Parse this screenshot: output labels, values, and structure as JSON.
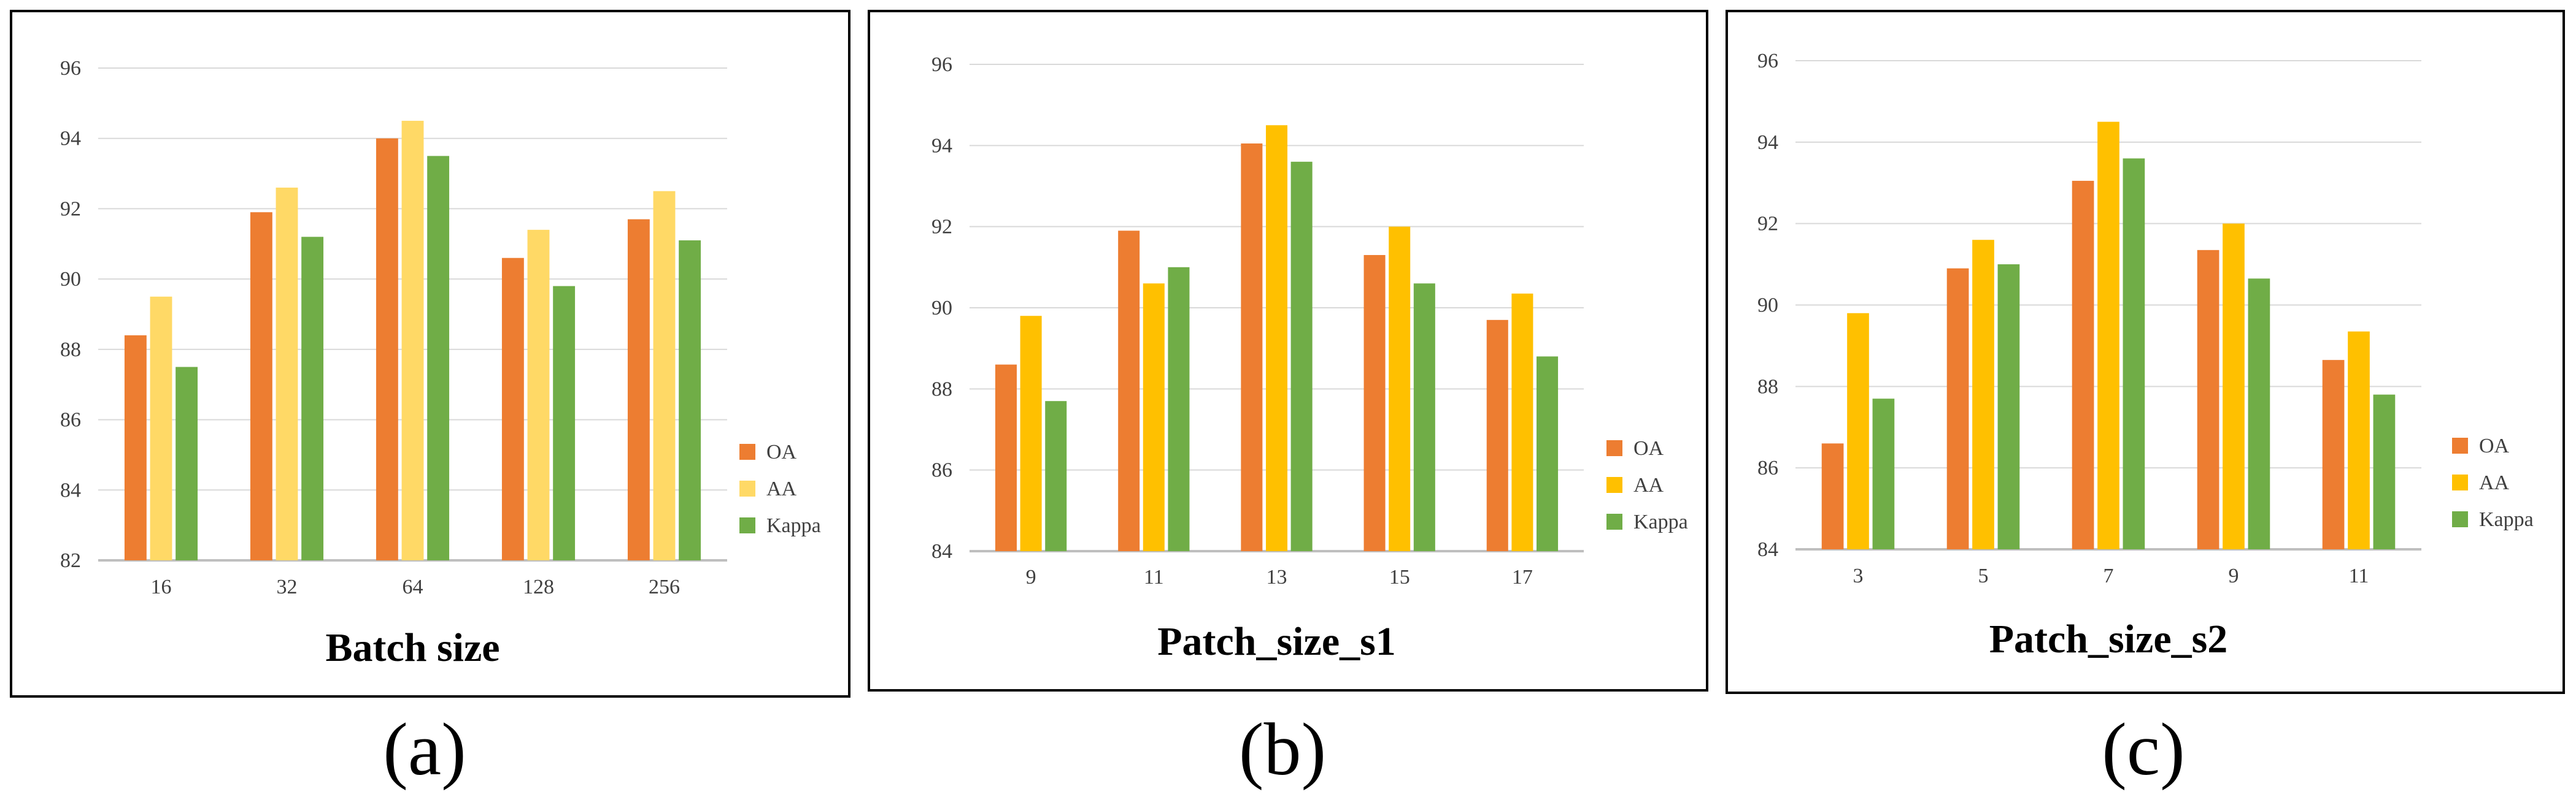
{
  "colors": {
    "OA": "#ed7d31",
    "AA_light": "#ffd966",
    "AA": "#ffc000",
    "Kappa": "#70ad47",
    "grid": "#d9d9d9",
    "axis": "#bfbfbf"
  },
  "captions": [
    "(a)",
    "(b)",
    "(c)"
  ],
  "chart_data": [
    {
      "type": "bar",
      "xlabel": "Batch size",
      "categories": [
        "16",
        "32",
        "64",
        "128",
        "256"
      ],
      "ylim": [
        82,
        96
      ],
      "yticks": [
        82,
        84,
        86,
        88,
        90,
        92,
        94,
        96
      ],
      "grid": true,
      "legend": "right",
      "series": [
        {
          "name": "OA",
          "values": [
            88.4,
            91.9,
            94.0,
            90.6,
            91.7
          ],
          "color": "#ed7d31"
        },
        {
          "name": "AA",
          "values": [
            89.5,
            92.6,
            94.5,
            91.4,
            92.5
          ],
          "color": "#ffd966"
        },
        {
          "name": "Kappa",
          "values": [
            87.5,
            91.2,
            93.5,
            89.8,
            91.1
          ],
          "color": "#70ad47"
        }
      ]
    },
    {
      "type": "bar",
      "xlabel": "Patch_size_s1",
      "categories": [
        "9",
        "11",
        "13",
        "15",
        "17"
      ],
      "ylim": [
        84,
        96
      ],
      "yticks": [
        84,
        86,
        88,
        90,
        92,
        94,
        96
      ],
      "grid": true,
      "legend": "right",
      "series": [
        {
          "name": "OA",
          "values": [
            88.6,
            91.9,
            94.05,
            91.3,
            89.7
          ],
          "color": "#ed7d31"
        },
        {
          "name": "AA",
          "values": [
            89.8,
            90.6,
            94.5,
            92.0,
            90.35
          ],
          "color": "#ffc000"
        },
        {
          "name": "Kappa",
          "values": [
            87.7,
            91.0,
            93.6,
            90.6,
            88.8
          ],
          "color": "#70ad47"
        }
      ]
    },
    {
      "type": "bar",
      "xlabel": "Patch_size_s2",
      "categories": [
        "3",
        "5",
        "7",
        "9",
        "11"
      ],
      "ylim": [
        84,
        96
      ],
      "yticks": [
        84,
        86,
        88,
        90,
        92,
        94,
        96
      ],
      "grid": true,
      "legend": "right",
      "series": [
        {
          "name": "OA",
          "values": [
            86.6,
            90.9,
            93.05,
            91.35,
            88.65
          ],
          "color": "#ed7d31"
        },
        {
          "name": "AA",
          "values": [
            89.8,
            91.6,
            94.5,
            92.0,
            89.35
          ],
          "color": "#ffc000"
        },
        {
          "name": "Kappa",
          "values": [
            87.7,
            91.0,
            93.6,
            90.65,
            87.8
          ],
          "color": "#70ad47"
        }
      ]
    }
  ]
}
